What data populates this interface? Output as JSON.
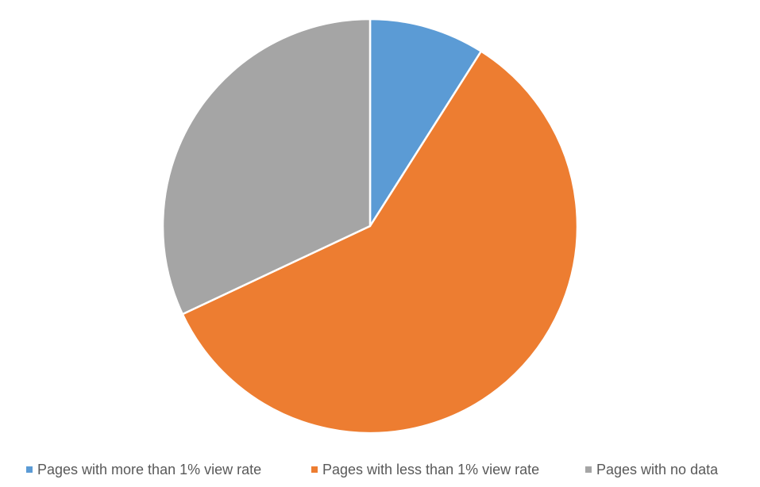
{
  "chart_data": {
    "type": "pie",
    "title": "",
    "categories": [
      "Pages with more than 1% view rate",
      "Pages with less than 1% view rate",
      "Pages with no data"
    ],
    "values": [
      9,
      59,
      32
    ],
    "colors": [
      "#5B9BD5",
      "#ED7D31",
      "#A5A5A5"
    ],
    "legend_position": "bottom"
  },
  "legend": {
    "items": [
      {
        "label": "Pages with more than 1% view rate",
        "color": "#5B9BD5"
      },
      {
        "label": "Pages with less than 1% view rate",
        "color": "#ED7D31"
      },
      {
        "label": "Pages with no data",
        "color": "#A5A5A5"
      }
    ]
  }
}
